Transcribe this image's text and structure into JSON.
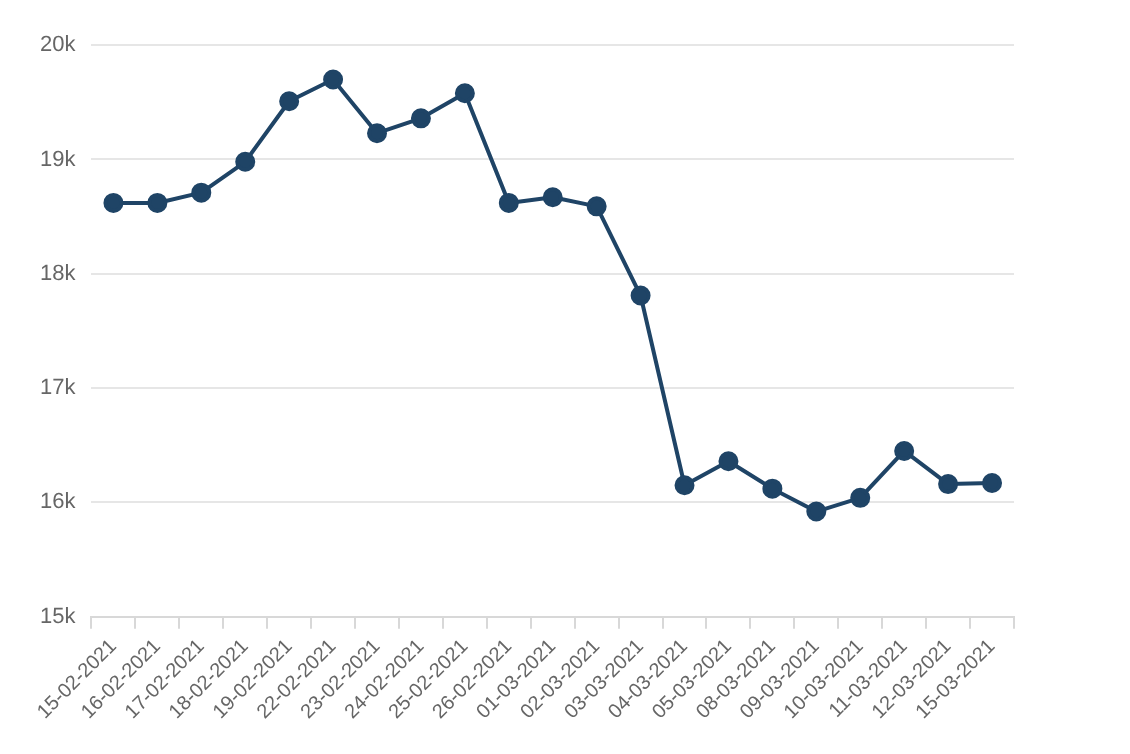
{
  "chart_data": {
    "type": "line",
    "categories": [
      "15-02-2021",
      "16-02-2021",
      "17-02-2021",
      "18-02-2021",
      "19-02-2021",
      "22-02-2021",
      "23-02-2021",
      "24-02-2021",
      "25-02-2021",
      "26-02-2021",
      "01-03-2021",
      "02-03-2021",
      "03-03-2021",
      "04-03-2021",
      "05-03-2021",
      "08-03-2021",
      "09-03-2021",
      "10-03-2021",
      "11-03-2021",
      "12-03-2021",
      "15-03-2021"
    ],
    "series": [
      {
        "color": "#1f4466",
        "values": [
          18620,
          18620,
          18710,
          18980,
          19510,
          19700,
          19230,
          19360,
          19580,
          18620,
          18670,
          18590,
          17810,
          16150,
          16360,
          16120,
          15920,
          16040,
          16450,
          16160,
          16170
        ]
      }
    ],
    "ylim": [
      15000,
      20000
    ],
    "yticks": [
      {
        "value": 15000,
        "label": "15k"
      },
      {
        "value": 16000,
        "label": "16k"
      },
      {
        "value": 17000,
        "label": "17k"
      },
      {
        "value": 18000,
        "label": "18k"
      },
      {
        "value": 19000,
        "label": "19k"
      },
      {
        "value": 20000,
        "label": "20k"
      }
    ],
    "grid": "y",
    "marker": "circle",
    "line_style": "solid",
    "legend": false
  }
}
